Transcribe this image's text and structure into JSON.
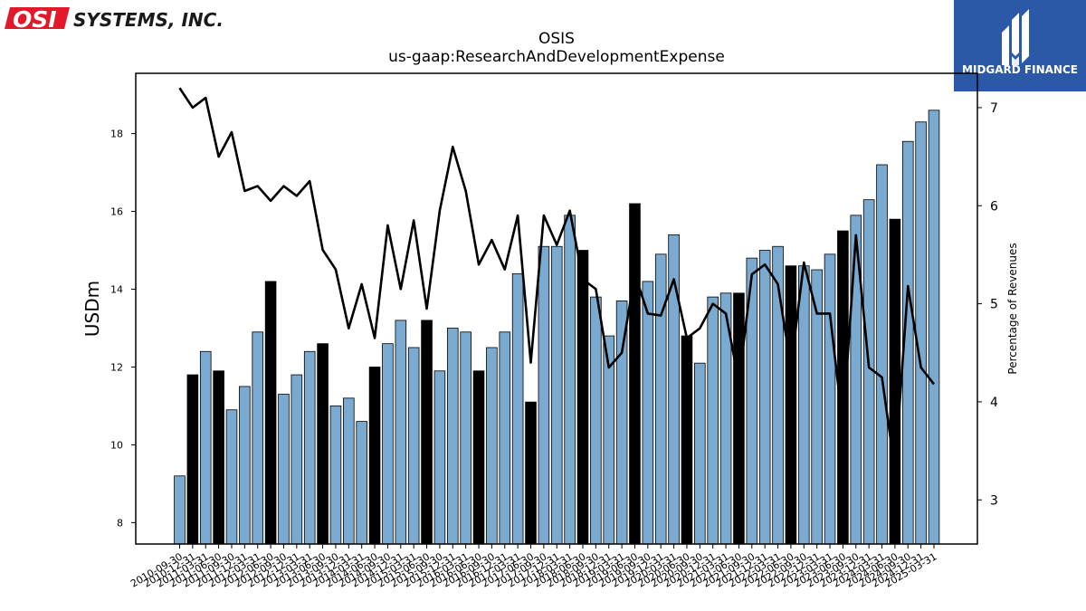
{
  "branding": {
    "company_logo_text": "OSI SYSTEMS, INC.",
    "watermark_text": "MIDGARD FINANCE",
    "company_color": "#e3192b",
    "watermark_bg": "#2b59a8"
  },
  "chart_data": {
    "type": "bar",
    "title": "OSIS",
    "subtitle": "us-gaap:ResearchAndDevelopmentExpense",
    "ylabel": "USDm",
    "y2label": "Percentage of Revenues",
    "ylim": [
      7.45,
      19.55
    ],
    "y2lim": [
      2.55,
      7.35
    ],
    "yticks": [
      8,
      10,
      12,
      14,
      16,
      18
    ],
    "y2ticks": [
      3,
      4,
      5,
      6,
      7
    ],
    "colors": {
      "bar": "#7aaad0",
      "bar_highlight": "#000000",
      "line": "#000000"
    },
    "categories": [
      "2010-09-30",
      "2010-12-31",
      "2011-03-31",
      "2011-06-30",
      "2011-09-30",
      "2011-12-31",
      "2012-03-31",
      "2012-06-30",
      "2012-09-30",
      "2012-12-31",
      "2013-03-31",
      "2013-06-30",
      "2013-09-30",
      "2013-12-31",
      "2014-03-31",
      "2014-06-30",
      "2014-09-30",
      "2014-12-31",
      "2015-03-31",
      "2015-06-30",
      "2015-09-30",
      "2015-12-31",
      "2016-03-31",
      "2016-06-30",
      "2016-09-30",
      "2016-12-31",
      "2017-03-31",
      "2017-06-30",
      "2017-09-30",
      "2017-12-31",
      "2018-03-31",
      "2018-06-30",
      "2018-09-30",
      "2018-12-31",
      "2019-03-31",
      "2019-06-30",
      "2019-09-30",
      "2019-12-31",
      "2020-03-31",
      "2020-06-30",
      "2020-09-30",
      "2020-12-31",
      "2021-03-31",
      "2021-06-30",
      "2021-09-30",
      "2021-12-31",
      "2022-03-31",
      "2022-06-30",
      "2022-09-30",
      "2022-12-31",
      "2023-03-31",
      "2023-06-30",
      "2023-09-30",
      "2023-12-31",
      "2024-03-31",
      "2024-06-30",
      "2024-09-30",
      "2024-12-31",
      "2025-03-31"
    ],
    "highlight_categories": [
      "2010-12-31",
      "2011-06-30",
      "2012-06-30",
      "2013-06-30",
      "2014-06-30",
      "2015-06-30",
      "2016-06-30",
      "2017-06-30",
      "2018-06-30",
      "2019-06-30",
      "2020-06-30",
      "2021-06-30",
      "2022-06-30",
      "2023-06-30",
      "2024-06-30"
    ],
    "series": [
      {
        "kind": "bar",
        "axis": "left",
        "values": [
          9.2,
          11.8,
          12.4,
          11.9,
          10.9,
          11.5,
          12.9,
          14.2,
          11.3,
          11.8,
          12.4,
          12.6,
          11.0,
          11.2,
          10.6,
          12.0,
          12.6,
          13.2,
          12.5,
          13.2,
          11.9,
          13.0,
          12.9,
          11.9,
          12.5,
          12.9,
          14.4,
          11.1,
          15.1,
          15.1,
          15.9,
          15.0,
          13.8,
          12.8,
          13.7,
          16.2,
          14.2,
          14.9,
          15.4,
          12.8,
          12.1,
          13.8,
          13.9,
          13.9,
          14.8,
          15.0,
          15.1,
          14.6,
          14.6,
          14.5,
          14.9,
          15.5,
          15.9,
          16.3,
          17.2,
          15.8,
          17.8,
          18.3,
          18.6
        ]
      },
      {
        "kind": "line",
        "axis": "right",
        "values": [
          7.2,
          7.0,
          7.1,
          6.5,
          6.75,
          6.15,
          6.2,
          6.05,
          6.2,
          6.1,
          6.25,
          5.55,
          5.35,
          4.75,
          5.2,
          4.65,
          5.8,
          5.15,
          5.85,
          4.95,
          5.95,
          6.6,
          6.15,
          5.4,
          5.65,
          5.35,
          5.9,
          4.4,
          5.9,
          5.6,
          5.95,
          5.25,
          5.15,
          4.35,
          4.5,
          5.3,
          4.9,
          4.88,
          5.25,
          4.65,
          4.75,
          5.0,
          4.9,
          4.2,
          5.3,
          5.4,
          5.2,
          4.35,
          5.42,
          4.9,
          4.9,
          3.75,
          5.7,
          4.35,
          4.25,
          3.3,
          5.18,
          4.35,
          4.18
        ]
      }
    ]
  }
}
